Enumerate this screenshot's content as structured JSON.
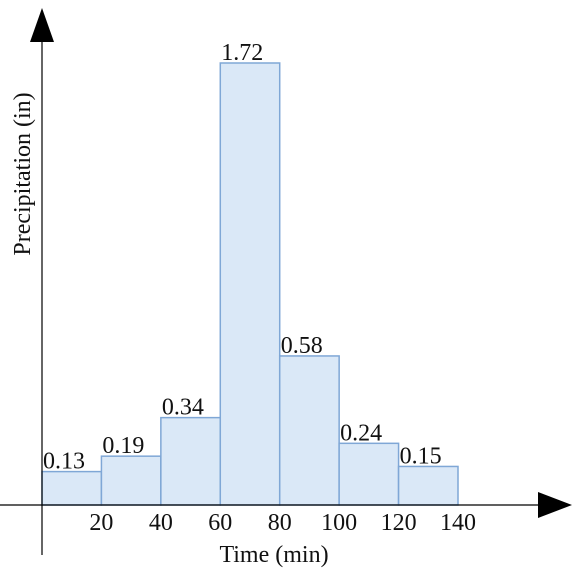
{
  "chart_data": {
    "type": "bar",
    "xlabel": "Time (min)",
    "ylabel": "Precipitation (in)",
    "x_ticks": [
      20,
      40,
      60,
      80,
      100,
      120,
      140
    ],
    "bins": [
      {
        "x0": 0,
        "x1": 20,
        "value": 0.13,
        "label": "0.13"
      },
      {
        "x0": 20,
        "x1": 40,
        "value": 0.19,
        "label": "0.19"
      },
      {
        "x0": 40,
        "x1": 60,
        "value": 0.34,
        "label": "0.34"
      },
      {
        "x0": 60,
        "x1": 80,
        "value": 1.72,
        "label": "1.72"
      },
      {
        "x0": 80,
        "x1": 100,
        "value": 0.58,
        "label": "0.58"
      },
      {
        "x0": 100,
        "x1": 120,
        "value": 0.24,
        "label": "0.24"
      },
      {
        "x0": 120,
        "x1": 140,
        "value": 0.15,
        "label": "0.15"
      }
    ],
    "xlim": [
      0,
      140
    ],
    "ylim": [
      0,
      1.72
    ],
    "bar_fill": "#dae8f7",
    "bar_stroke": "#7fa7d6",
    "axis_color": "#000000",
    "grid": false
  }
}
